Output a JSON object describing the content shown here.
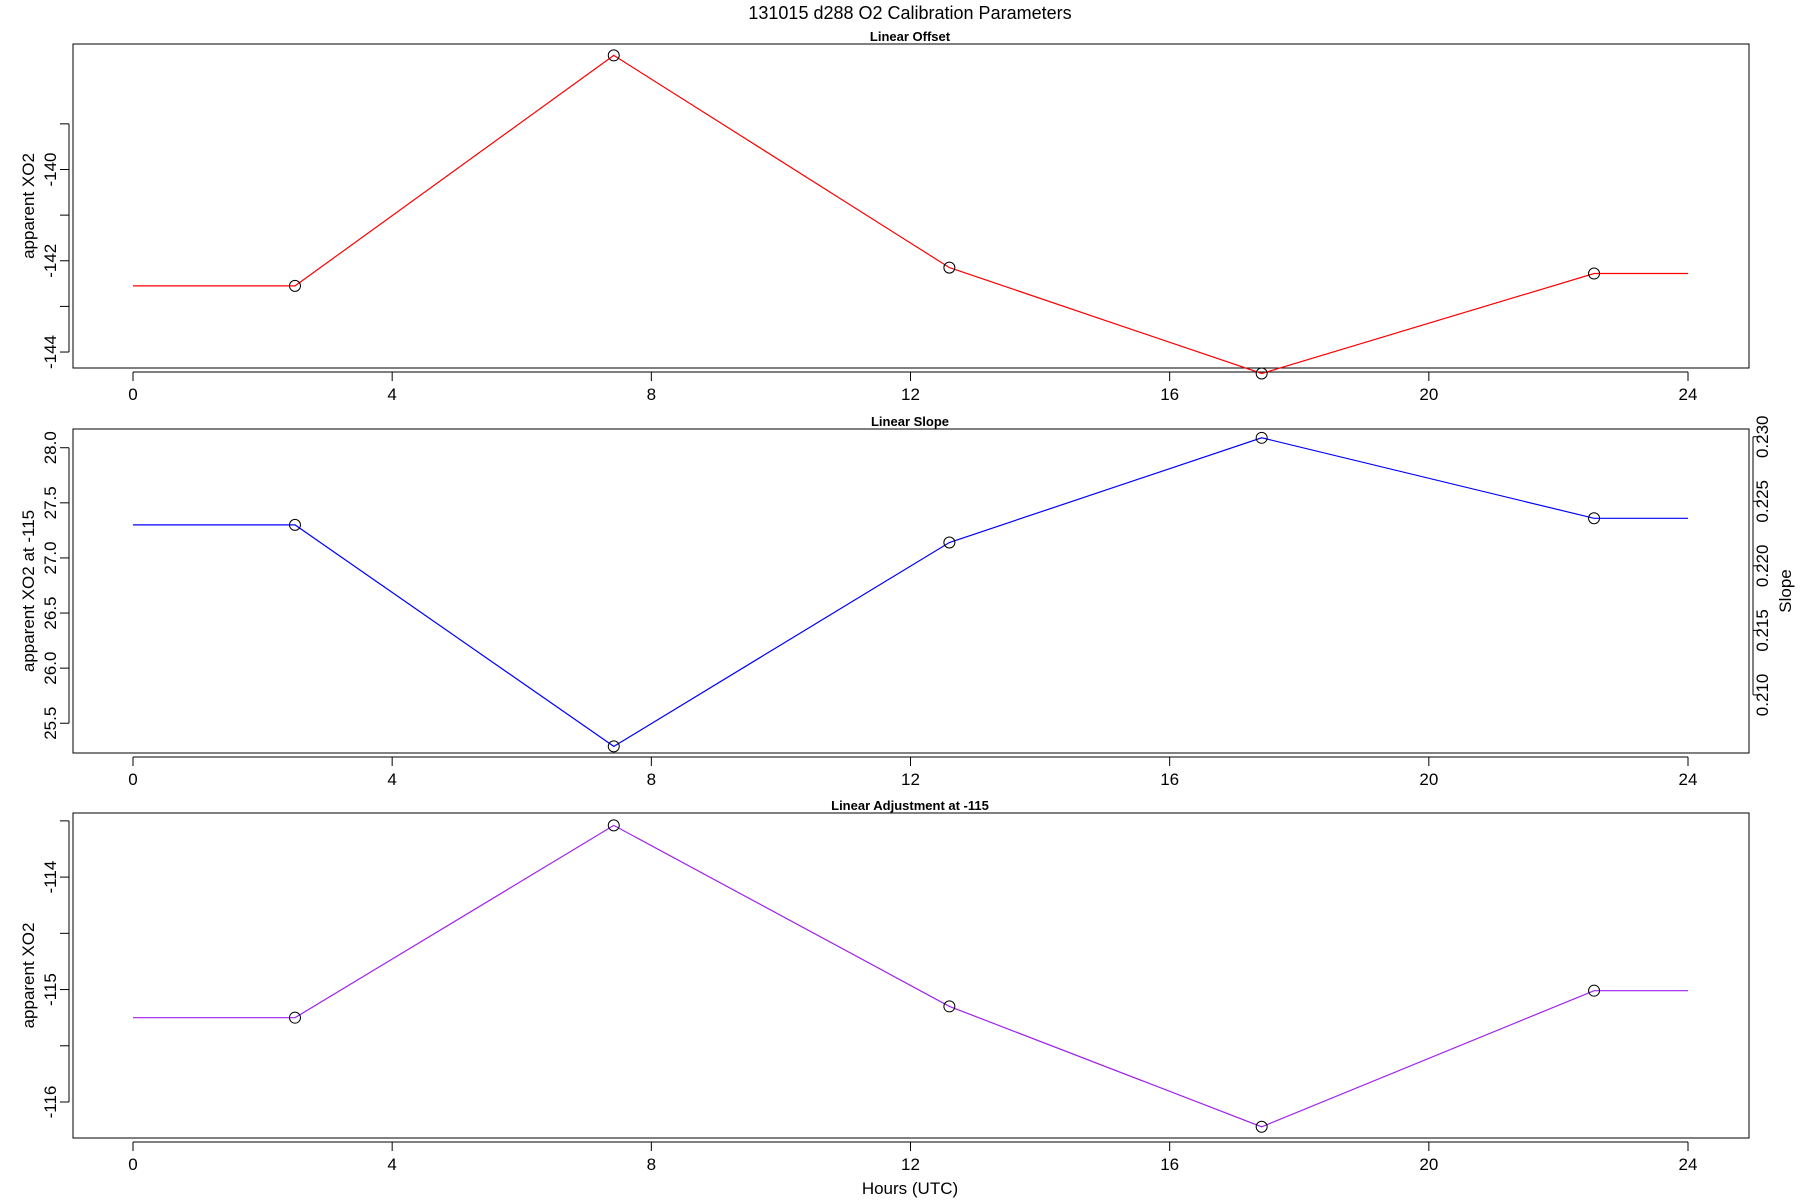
{
  "figure_title": "131015   d288   O2 Calibration Parameters",
  "xlabel": "Hours (UTC)",
  "chart_data": [
    {
      "type": "line",
      "title": "Linear Offset",
      "xlabel": "Hours (UTC)",
      "ylabel": "apparent XO2",
      "xlim": [
        0,
        24
      ],
      "xticks": [
        0,
        4,
        8,
        12,
        16,
        20,
        24
      ],
      "ylim": [
        -144.35,
        -137.25
      ],
      "yticks": [
        -140,
        -142,
        -144
      ],
      "yminor": [
        -139,
        -141,
        -143
      ],
      "color": "#ff0000",
      "x": [
        0,
        2.5,
        7.42,
        12.6,
        17.42,
        22.55,
        24
      ],
      "y": [
        -142.55,
        -142.55,
        -137.5,
        -142.15,
        -144.47,
        -142.28,
        -142.28
      ],
      "markers": [
        1,
        2,
        3,
        4,
        5
      ]
    },
    {
      "type": "line",
      "title": "Linear Slope",
      "xlabel": "Hours (UTC)",
      "ylabel": "apparent XO2 at -115",
      "ylabel_right": "Slope",
      "xlim": [
        0,
        24
      ],
      "xticks": [
        0,
        4,
        8,
        12,
        16,
        20,
        24
      ],
      "ylim": [
        25.23,
        28.17
      ],
      "yticks": [
        25.5,
        26.0,
        26.5,
        27.0,
        27.5,
        28.0
      ],
      "ylim_right": [
        0.2055,
        0.2306
      ],
      "yticks_right": [
        0.21,
        0.215,
        0.22,
        0.225,
        0.23
      ],
      "color": "#0000ff",
      "x": [
        0,
        2.5,
        7.42,
        12.6,
        17.42,
        22.55,
        24
      ],
      "y": [
        27.3,
        27.3,
        25.29,
        27.14,
        28.09,
        27.36,
        27.36
      ],
      "markers": [
        1,
        2,
        3,
        4,
        5
      ]
    },
    {
      "type": "line",
      "title": "Linear Adjustment at -115",
      "xlabel": "Hours (UTC)",
      "ylabel": "apparent XO2",
      "xlim": [
        0,
        24
      ],
      "xticks": [
        0,
        4,
        8,
        12,
        16,
        20,
        24
      ],
      "ylim": [
        -116.32,
        -113.43
      ],
      "yticks": [
        -114.0,
        -115.0,
        -116.0
      ],
      "yminor": [
        -113.5,
        -114.5,
        -115.5
      ],
      "color": "#a020f0",
      "x": [
        0,
        2.5,
        7.42,
        12.6,
        17.42,
        22.55,
        24
      ],
      "y": [
        -115.25,
        -115.25,
        -113.54,
        -115.15,
        -116.22,
        -115.01,
        -115.01
      ],
      "markers": [
        1,
        2,
        3,
        4,
        5
      ]
    }
  ]
}
